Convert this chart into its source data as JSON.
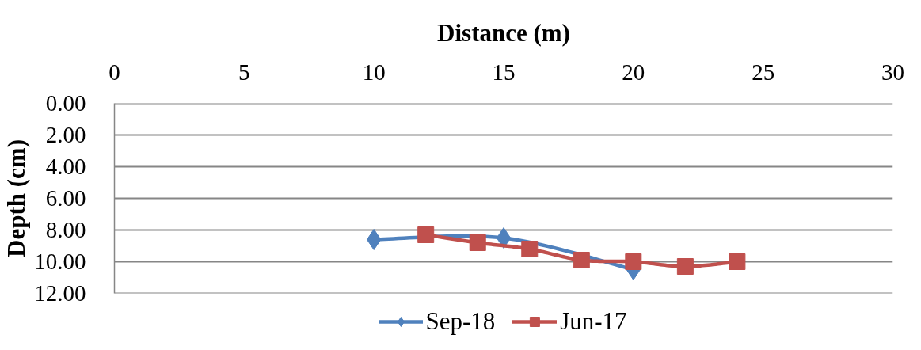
{
  "chart_data": {
    "type": "line",
    "xlabel": "Distance (m)",
    "ylabel": "Depth (cm)",
    "xlim": [
      0,
      30
    ],
    "xticks": [
      0,
      5,
      10,
      15,
      20,
      25,
      30
    ],
    "ylim": [
      12,
      0
    ],
    "yticks": [
      {
        "value": 0,
        "label": "0.00"
      },
      {
        "value": 2,
        "label": "2.00"
      },
      {
        "value": 4,
        "label": "4.00"
      },
      {
        "value": 6,
        "label": "6.00"
      },
      {
        "value": 8,
        "label": "8.00"
      },
      {
        "value": 10,
        "label": "10.00"
      },
      {
        "value": 12,
        "label": "12.00"
      }
    ],
    "grid": "y",
    "legend": "bottom",
    "line_style": "solid",
    "series": [
      {
        "name": "Sep-18",
        "color": "#4f81bd",
        "marker": "diamond",
        "x": [
          10,
          15,
          20
        ],
        "values": [
          8.6,
          8.5,
          10.5
        ]
      },
      {
        "name": "Jun-17",
        "color": "#c0504d",
        "marker": "square",
        "x": [
          12,
          14,
          16,
          18,
          20,
          22,
          24
        ],
        "values": [
          8.3,
          8.8,
          9.2,
          9.9,
          10.0,
          10.3,
          10.0
        ]
      }
    ]
  }
}
